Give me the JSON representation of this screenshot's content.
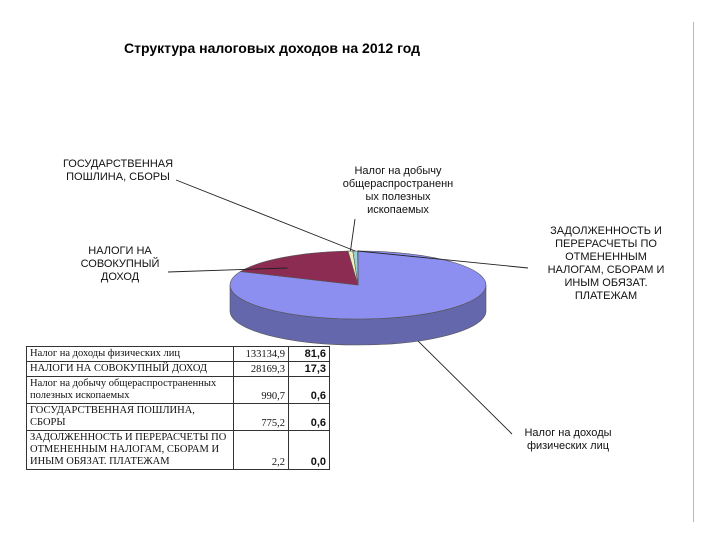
{
  "chart_data": {
    "type": "pie",
    "title": "Структура налоговых доходов на 2012 год",
    "slices": [
      {
        "label": "Налог на доходы\nфизических лиц",
        "value": 81.6,
        "color": "#8c8ff0"
      },
      {
        "label": "НАЛОГИ НА\nСОВОКУПНЫЙ\nДОХОД",
        "value": 17.3,
        "color": "#8c2c52"
      },
      {
        "label": "Налог на добычу\nобщераспространенн\nых полезных\nископаемых",
        "value": 0.6,
        "color": "#f2f0bc"
      },
      {
        "label": "ГОСУДАРСТВЕННАЯ\nПОШЛИНА, СБОРЫ",
        "value": 0.6,
        "color": "#9ed0d8"
      },
      {
        "label": "ЗАДОЛЖЕННОСТЬ И\nПЕРЕРАСЧЕТЫ ПО\nОТМЕНЕННЫМ\nНАЛОГАМ, СБОРАМ И\nИНЫМ ОБЯЗАТ.\nПЛАТЕЖАМ",
        "value": 0.0,
        "color": "#606060"
      }
    ]
  },
  "table": {
    "rows": [
      {
        "name": "Налог на доходы физических лиц",
        "value": "133134,9",
        "pct": "81,6"
      },
      {
        "name": "НАЛОГИ НА СОВОКУПНЫЙ ДОХОД",
        "value": "28169,3",
        "pct": "17,3"
      },
      {
        "name": "Налог на добычу общераспространенных полезных ископаемых",
        "value": "990,7",
        "pct": "0,6"
      },
      {
        "name": "ГОСУДАРСТВЕННАЯ ПОШЛИНА, СБОРЫ",
        "value": "775,2",
        "pct": "0,6"
      },
      {
        "name": "ЗАДОЛЖЕННОСТЬ И ПЕРЕРАСЧЕТЫ ПО ОТМЕНЕННЫМ НАЛОГАМ, СБОРАМ И ИНЫМ ОБЯЗАТ. ПЛАТЕЖАМ",
        "value": "2,2",
        "pct": "0,0"
      }
    ]
  }
}
